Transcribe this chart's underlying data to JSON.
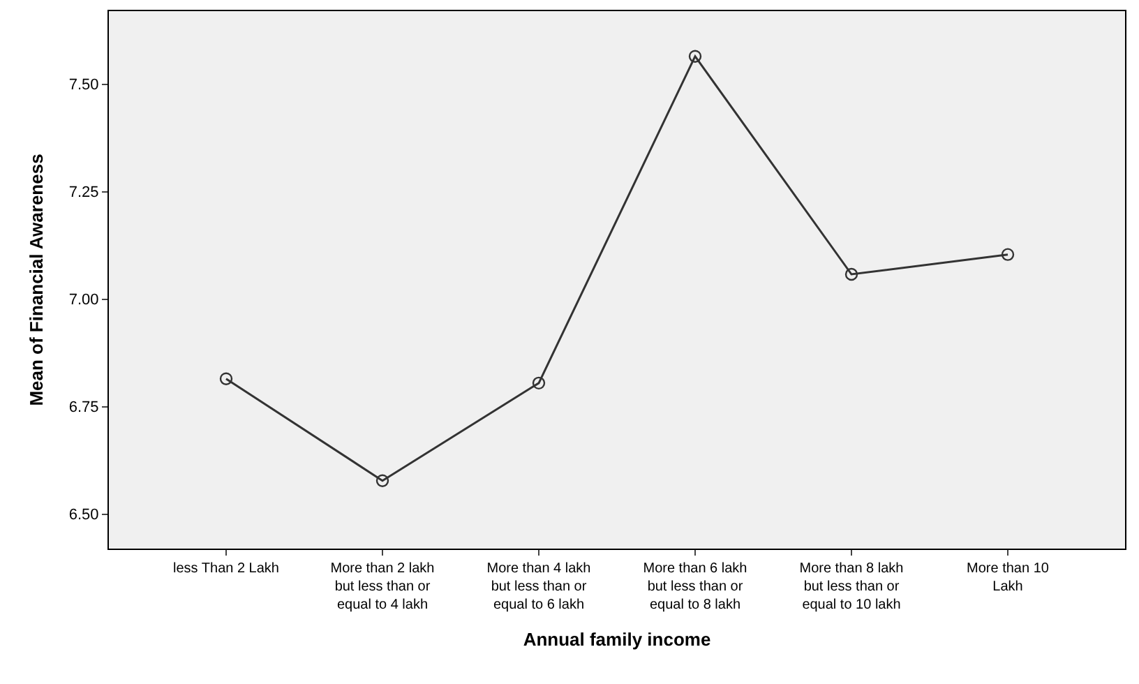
{
  "chart_data": {
    "type": "line",
    "xlabel": "Annual family income",
    "ylabel": "Mean of Financial Awareness",
    "categories": [
      "less Than 2 Lakh",
      "More than 2 lakh but less than or equal to 4 lakh",
      "More than 4 lakh but less than or equal to 6 lakh",
      "More than 6 lakh but less than or equal to 8 lakh",
      "More than 8 lakh but less than or equal to 10 lakh",
      "More than 10 Lakh"
    ],
    "series": [
      {
        "color": "#333333",
        "values": [
          6.815,
          6.578,
          6.805,
          7.565,
          7.058,
          7.104
        ]
      }
    ],
    "ylim": [
      6.42,
      7.67
    ],
    "yticks": [
      {
        "value": 6.5,
        "label": "6.50"
      },
      {
        "value": 6.75,
        "label": "6.75"
      },
      {
        "value": 7.0,
        "label": "7.00"
      },
      {
        "value": 7.25,
        "label": "7.25"
      },
      {
        "value": 7.5,
        "label": "7.50"
      }
    ],
    "grid": false,
    "legend": false,
    "marker": "circle",
    "line_style": "solid"
  }
}
